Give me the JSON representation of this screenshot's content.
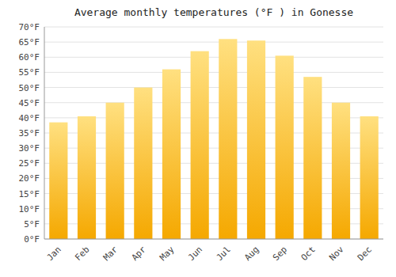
{
  "chart_data": {
    "type": "bar",
    "title": "Average monthly temperatures (°F ) in Gonesse",
    "categories": [
      "Jan",
      "Feb",
      "Mar",
      "Apr",
      "May",
      "Jun",
      "Jul",
      "Aug",
      "Sep",
      "Oct",
      "Nov",
      "Dec"
    ],
    "values": [
      38.5,
      40.5,
      45.0,
      50.0,
      56.0,
      62.0,
      66.0,
      65.5,
      60.5,
      53.5,
      45.0,
      40.5
    ],
    "color": [
      "#F5A800",
      "#FFE080"
    ],
    "ylim": [
      0,
      70
    ],
    "yticks": [
      {
        "value": 0,
        "label": "0°F"
      },
      {
        "value": 5,
        "label": "5°F"
      },
      {
        "value": 10,
        "label": "10°F"
      },
      {
        "value": 15,
        "label": "15°F"
      },
      {
        "value": 20,
        "label": "20°F"
      },
      {
        "value": 25,
        "label": "25°F"
      },
      {
        "value": 30,
        "label": "30°F"
      },
      {
        "value": 35,
        "label": "35°F"
      },
      {
        "value": 40,
        "label": "40°F"
      },
      {
        "value": 45,
        "label": "45°F"
      },
      {
        "value": 50,
        "label": "50°F"
      },
      {
        "value": 55,
        "label": "55°F"
      },
      {
        "value": 60,
        "label": "60°F"
      },
      {
        "value": 65,
        "label": "65°F"
      },
      {
        "value": 70,
        "label": "70°F"
      }
    ],
    "grid": true
  }
}
